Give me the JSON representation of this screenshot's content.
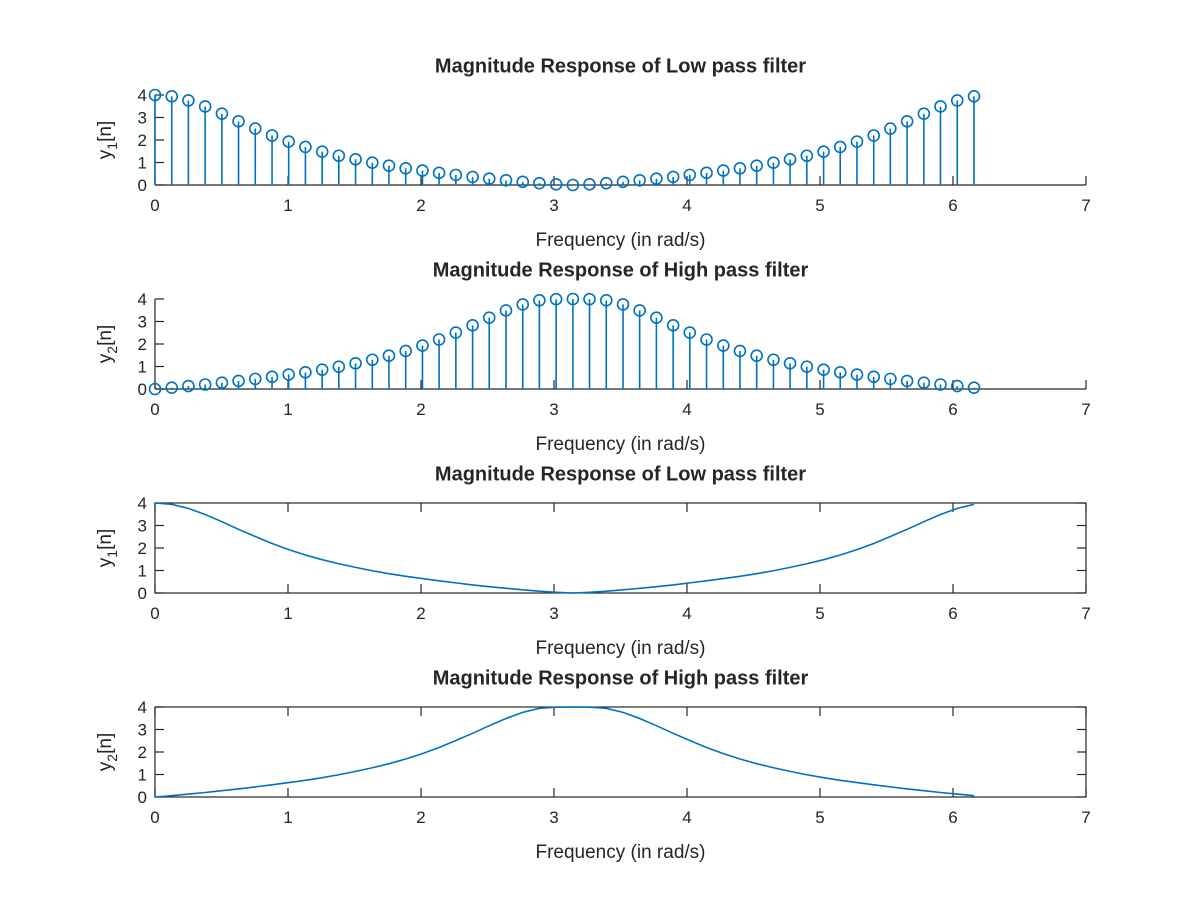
{
  "figure": {
    "background": "#ffffff",
    "axis_color": "#262626",
    "series_color": "#0072bd"
  },
  "chart_data": [
    {
      "type": "stem",
      "title": "Magnitude Response of Low pass filter",
      "xlabel": "Frequency (in rad/s)",
      "ylabel": {
        "base": "y",
        "sub": "1",
        "rest": "[n]"
      },
      "xlim": [
        0,
        7
      ],
      "ylim": [
        0,
        4
      ],
      "xticks": [
        "0",
        "1",
        "2",
        "3",
        "4",
        "5",
        "6",
        "7"
      ],
      "yticks": [
        "0",
        "1",
        "2",
        "3",
        "4"
      ],
      "x": [
        0,
        0.126,
        0.251,
        0.377,
        0.503,
        0.628,
        0.754,
        0.88,
        1.005,
        1.131,
        1.257,
        1.382,
        1.508,
        1.634,
        1.759,
        1.885,
        2.011,
        2.136,
        2.262,
        2.388,
        2.513,
        2.639,
        2.765,
        2.89,
        3.016,
        3.142,
        3.267,
        3.393,
        3.519,
        3.644,
        3.77,
        3.896,
        4.021,
        4.147,
        4.273,
        4.398,
        4.524,
        4.65,
        4.775,
        4.901,
        5.027,
        5.152,
        5.278,
        5.404,
        5.529,
        5.655,
        5.781,
        5.906,
        6.032,
        6.158
      ],
      "values": [
        4.0,
        3.94,
        3.76,
        3.49,
        3.17,
        2.83,
        2.51,
        2.2,
        1.93,
        1.69,
        1.48,
        1.3,
        1.14,
        0.99,
        0.86,
        0.74,
        0.64,
        0.54,
        0.45,
        0.36,
        0.28,
        0.21,
        0.14,
        0.08,
        0.03,
        0.0,
        0.03,
        0.08,
        0.14,
        0.21,
        0.28,
        0.36,
        0.45,
        0.54,
        0.64,
        0.74,
        0.86,
        0.99,
        1.14,
        1.3,
        1.48,
        1.69,
        1.93,
        2.2,
        2.51,
        2.83,
        3.17,
        3.49,
        3.76,
        3.94
      ]
    },
    {
      "type": "stem",
      "title": "Magnitude Response of High pass filter",
      "xlabel": "Frequency (in rad/s)",
      "ylabel": {
        "base": "y",
        "sub": "2",
        "rest": "[n]"
      },
      "xlim": [
        0,
        7
      ],
      "ylim": [
        0,
        4
      ],
      "xticks": [
        "0",
        "1",
        "2",
        "3",
        "4",
        "5",
        "6",
        "7"
      ],
      "yticks": [
        "0",
        "1",
        "2",
        "3",
        "4"
      ],
      "x": [
        0,
        0.126,
        0.251,
        0.377,
        0.503,
        0.628,
        0.754,
        0.88,
        1.005,
        1.131,
        1.257,
        1.382,
        1.508,
        1.634,
        1.759,
        1.885,
        2.011,
        2.136,
        2.262,
        2.388,
        2.513,
        2.639,
        2.765,
        2.89,
        3.016,
        3.142,
        3.267,
        3.393,
        3.519,
        3.644,
        3.77,
        3.896,
        4.021,
        4.147,
        4.273,
        4.398,
        4.524,
        4.65,
        4.775,
        4.901,
        5.027,
        5.152,
        5.278,
        5.404,
        5.529,
        5.655,
        5.781,
        5.906,
        6.032,
        6.158
      ],
      "values": [
        0.0,
        0.06,
        0.13,
        0.2,
        0.28,
        0.36,
        0.45,
        0.54,
        0.64,
        0.74,
        0.86,
        0.99,
        1.14,
        1.3,
        1.48,
        1.69,
        1.93,
        2.2,
        2.51,
        2.83,
        3.17,
        3.49,
        3.76,
        3.94,
        3.99,
        4.0,
        3.99,
        3.94,
        3.76,
        3.49,
        3.17,
        2.83,
        2.51,
        2.2,
        1.93,
        1.69,
        1.48,
        1.3,
        1.14,
        0.99,
        0.86,
        0.74,
        0.64,
        0.54,
        0.45,
        0.36,
        0.28,
        0.2,
        0.13,
        0.06
      ]
    },
    {
      "type": "line",
      "title": "Magnitude Response of Low pass filter",
      "xlabel": "Frequency (in rad/s)",
      "ylabel": {
        "base": "y",
        "sub": "1",
        "rest": "[n]"
      },
      "xlim": [
        0,
        7
      ],
      "ylim": [
        0,
        4
      ],
      "xticks": [
        "0",
        "1",
        "2",
        "3",
        "4",
        "5",
        "6",
        "7"
      ],
      "yticks": [
        "0",
        "1",
        "2",
        "3",
        "4"
      ],
      "x": [
        0,
        0.126,
        0.251,
        0.377,
        0.503,
        0.628,
        0.754,
        0.88,
        1.005,
        1.131,
        1.257,
        1.382,
        1.508,
        1.634,
        1.759,
        1.885,
        2.011,
        2.136,
        2.262,
        2.388,
        2.513,
        2.639,
        2.765,
        2.89,
        3.016,
        3.142,
        3.267,
        3.393,
        3.519,
        3.644,
        3.77,
        3.896,
        4.021,
        4.147,
        4.273,
        4.398,
        4.524,
        4.65,
        4.775,
        4.901,
        5.027,
        5.152,
        5.278,
        5.404,
        5.529,
        5.655,
        5.781,
        5.906,
        6.032,
        6.158
      ],
      "values": [
        4.0,
        3.94,
        3.76,
        3.49,
        3.17,
        2.83,
        2.51,
        2.2,
        1.93,
        1.69,
        1.48,
        1.3,
        1.14,
        0.99,
        0.86,
        0.74,
        0.64,
        0.54,
        0.45,
        0.36,
        0.28,
        0.21,
        0.14,
        0.08,
        0.03,
        0.0,
        0.03,
        0.08,
        0.14,
        0.21,
        0.28,
        0.36,
        0.45,
        0.54,
        0.64,
        0.74,
        0.86,
        0.99,
        1.14,
        1.3,
        1.48,
        1.69,
        1.93,
        2.2,
        2.51,
        2.83,
        3.17,
        3.49,
        3.76,
        3.94
      ]
    },
    {
      "type": "line",
      "title": "Magnitude Response of High pass filter",
      "xlabel": "Frequency (in rad/s)",
      "ylabel": {
        "base": "y",
        "sub": "2",
        "rest": "[n]"
      },
      "xlim": [
        0,
        7
      ],
      "ylim": [
        0,
        4
      ],
      "xticks": [
        "0",
        "1",
        "2",
        "3",
        "4",
        "5",
        "6",
        "7"
      ],
      "yticks": [
        "0",
        "1",
        "2",
        "3",
        "4"
      ],
      "x": [
        0,
        0.126,
        0.251,
        0.377,
        0.503,
        0.628,
        0.754,
        0.88,
        1.005,
        1.131,
        1.257,
        1.382,
        1.508,
        1.634,
        1.759,
        1.885,
        2.011,
        2.136,
        2.262,
        2.388,
        2.513,
        2.639,
        2.765,
        2.89,
        3.016,
        3.142,
        3.267,
        3.393,
        3.519,
        3.644,
        3.77,
        3.896,
        4.021,
        4.147,
        4.273,
        4.398,
        4.524,
        4.65,
        4.775,
        4.901,
        5.027,
        5.152,
        5.278,
        5.404,
        5.529,
        5.655,
        5.781,
        5.906,
        6.032,
        6.158
      ],
      "values": [
        0.0,
        0.06,
        0.13,
        0.2,
        0.28,
        0.36,
        0.45,
        0.54,
        0.64,
        0.74,
        0.86,
        0.99,
        1.14,
        1.3,
        1.48,
        1.69,
        1.93,
        2.2,
        2.51,
        2.83,
        3.17,
        3.49,
        3.76,
        3.94,
        3.99,
        4.0,
        3.99,
        3.94,
        3.76,
        3.49,
        3.17,
        2.83,
        2.51,
        2.2,
        1.93,
        1.69,
        1.48,
        1.3,
        1.14,
        0.99,
        0.86,
        0.74,
        0.64,
        0.54,
        0.45,
        0.36,
        0.28,
        0.2,
        0.13,
        0.06
      ]
    }
  ]
}
